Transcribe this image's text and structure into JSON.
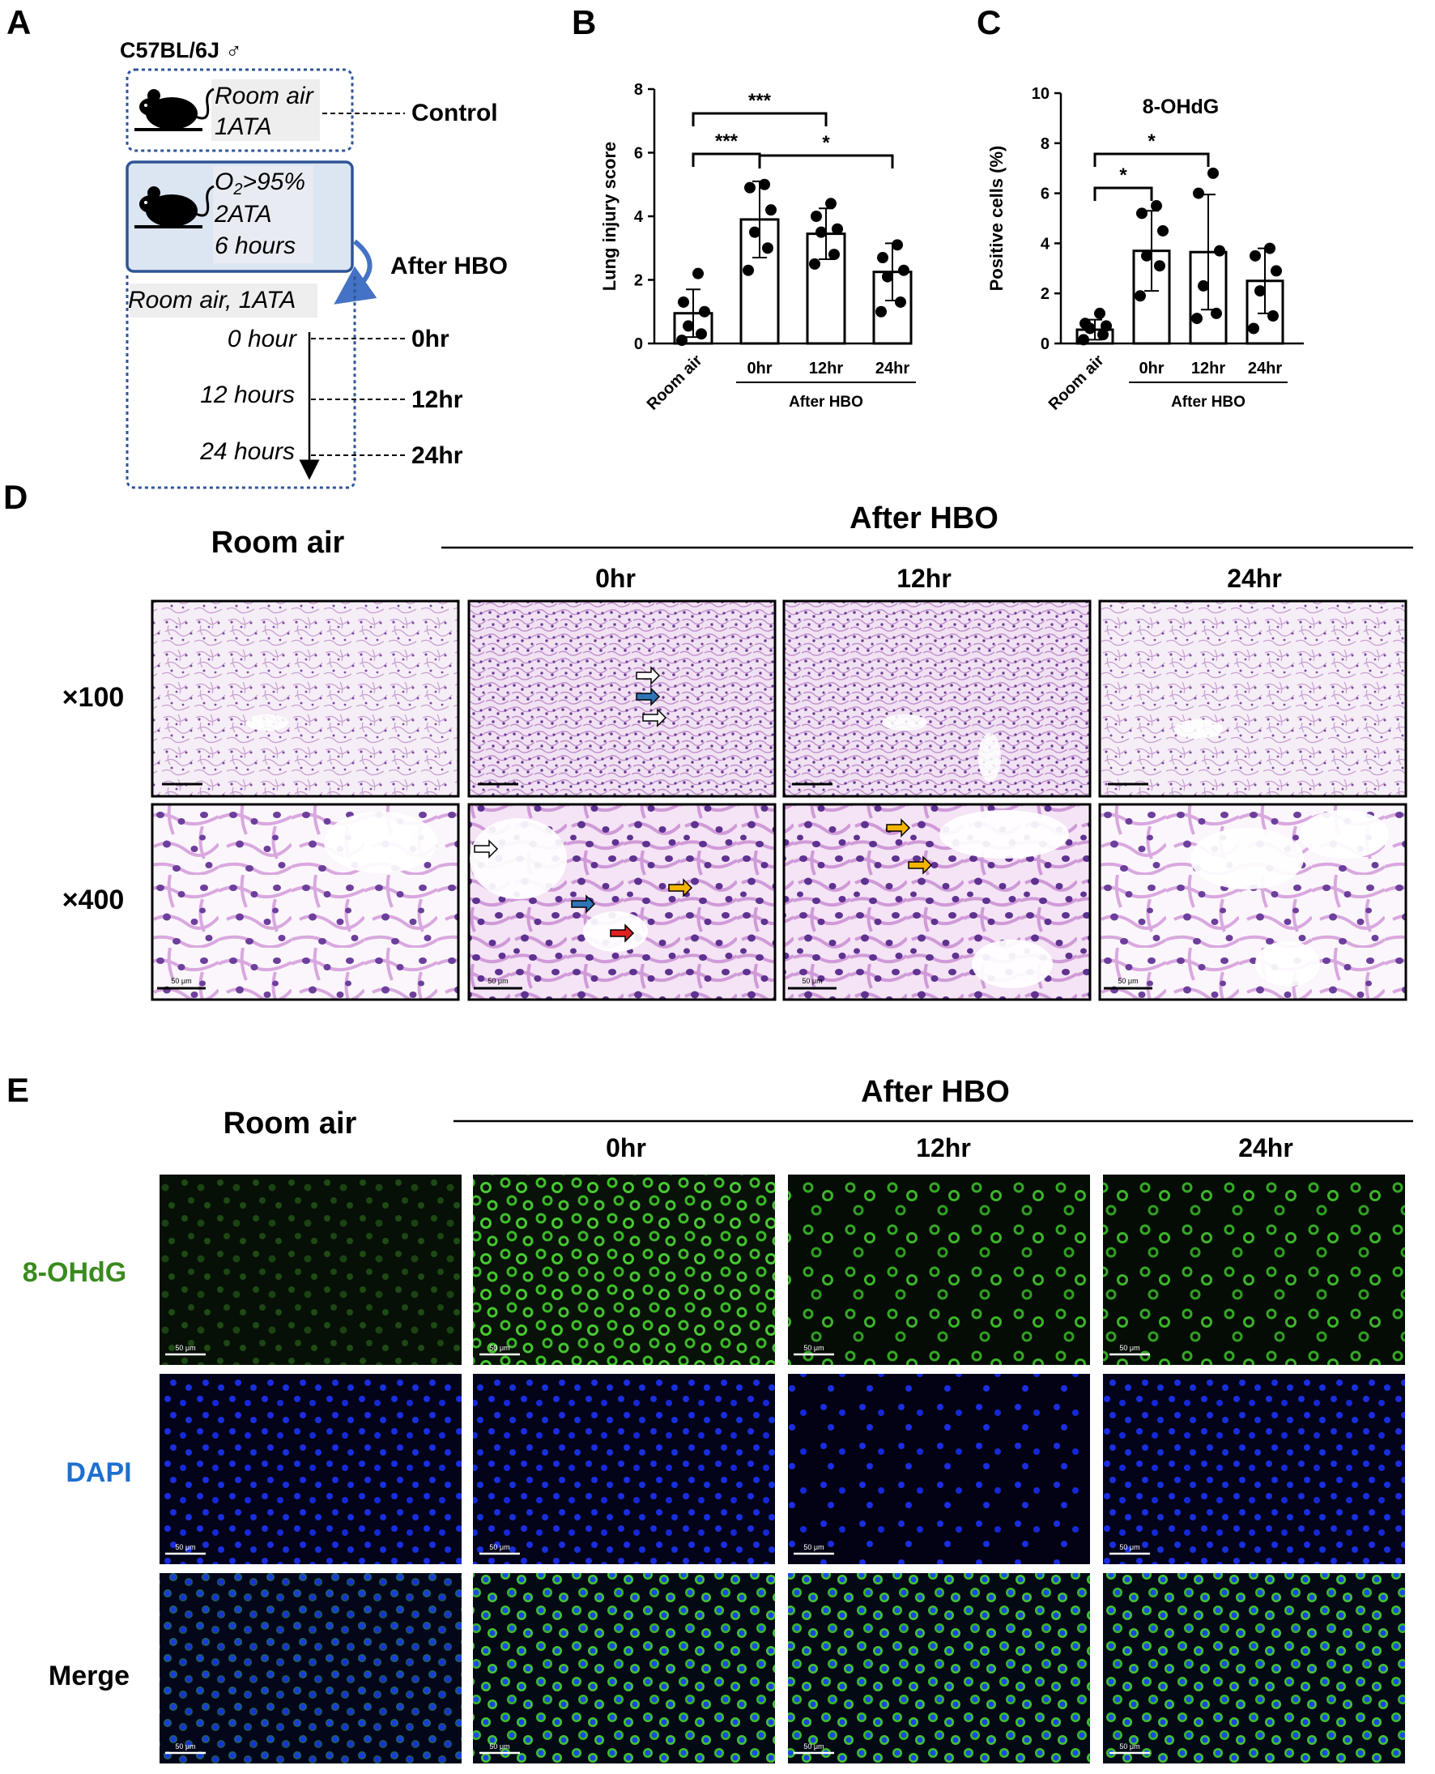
{
  "panels": {
    "a": {
      "letter": "A",
      "strain": "C57BL/6J ♂",
      "control_box": {
        "line1": "Room air",
        "line2": "1ATA",
        "label": "Control"
      },
      "hbo_box": {
        "o2_prefix": "O",
        "o2_sub": "2",
        "o2_suffix": ">95%",
        "line2": "2ATA",
        "line3": "6 hours"
      },
      "after_hbo": "After HBO",
      "recovery": "Room air, 1ATA",
      "timepoints": [
        {
          "time": "0 hour",
          "label": "0hr"
        },
        {
          "time": "12 hours",
          "label": "12hr"
        },
        {
          "time": "24 hours",
          "label": "24hr"
        }
      ]
    },
    "b": {
      "letter": "B"
    },
    "c": {
      "letter": "C"
    },
    "d": {
      "letter": "D",
      "room_air": "Room air",
      "after_hbo": "After HBO",
      "columns": [
        "0hr",
        "12hr",
        "24hr"
      ],
      "rows": [
        "×100",
        "×400"
      ],
      "scale_label": "50 μm"
    },
    "e": {
      "letter": "E",
      "room_air": "Room air",
      "after_hbo": "After HBO",
      "columns": [
        "0hr",
        "12hr",
        "24hr"
      ],
      "rows": [
        "8-OHdG",
        "DAPI",
        "Merge"
      ],
      "row_colors": [
        "#3a8a1e",
        "#1e6fd0",
        "#000000"
      ],
      "scale_label": "50 μm"
    }
  },
  "chart_data": [
    {
      "type": "bar",
      "panel": "B",
      "ylabel": "Lung injury score",
      "ylim": [
        0,
        8
      ],
      "yticks": [
        0,
        2,
        4,
        6,
        8
      ],
      "categories": [
        "Room air",
        "0hr",
        "12hr",
        "24hr"
      ],
      "group_label": "After HBO",
      "values": [
        0.95,
        3.9,
        3.45,
        2.25
      ],
      "errors": [
        0.75,
        1.2,
        0.8,
        0.9
      ],
      "points": [
        [
          0.1,
          0.3,
          0.55,
          1.0,
          1.3,
          2.2
        ],
        [
          2.3,
          3.0,
          3.5,
          4.2,
          4.9,
          5.0
        ],
        [
          2.5,
          2.8,
          3.5,
          3.6,
          4.0,
          4.4
        ],
        [
          1.0,
          1.3,
          2.1,
          2.3,
          2.7,
          3.1
        ]
      ],
      "significance": [
        {
          "from": 0,
          "to": 2,
          "label": "***"
        },
        {
          "from": 0,
          "to": 1,
          "label": "***"
        },
        {
          "from": 1,
          "to": 3,
          "label": "*"
        }
      ]
    },
    {
      "type": "bar",
      "panel": "C",
      "title": "8-OHdG",
      "ylabel": "Positive cells (%)",
      "ylim": [
        0,
        10
      ],
      "yticks": [
        0,
        2,
        4,
        6,
        8,
        10
      ],
      "categories": [
        "Room air",
        "0hr",
        "12hr",
        "24hr"
      ],
      "group_label": "After HBO",
      "values": [
        0.55,
        3.7,
        3.65,
        2.5
      ],
      "errors": [
        0.4,
        1.6,
        2.3,
        1.3
      ],
      "points": [
        [
          0.15,
          0.35,
          0.6,
          0.7,
          0.8,
          1.2
        ],
        [
          1.9,
          3.1,
          3.5,
          4.5,
          5.2,
          5.5
        ],
        [
          1.0,
          1.2,
          2.3,
          3.7,
          6.0,
          6.8
        ],
        [
          0.6,
          1.1,
          2.1,
          2.9,
          3.5,
          3.8
        ]
      ],
      "significance": [
        {
          "from": 0,
          "to": 2,
          "label": "*"
        },
        {
          "from": 0,
          "to": 1,
          "label": "*"
        }
      ]
    }
  ]
}
